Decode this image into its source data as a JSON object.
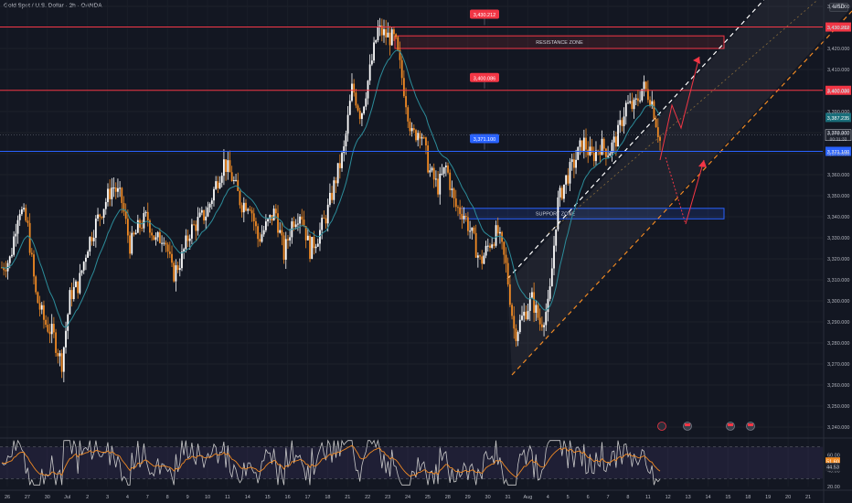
{
  "header": {
    "title": "Gold Spot / U.S. Dollar · 2h · OANDA",
    "currency": "USD"
  },
  "colors": {
    "background": "#131722",
    "bull": "#ffffff",
    "bear": "#f08a24",
    "ema": "#2c8c9a",
    "resistance": "#f23645",
    "support": "#2962ff",
    "channel_upper": "#ffffff",
    "channel_lower": "#f08a24",
    "rsi": "#c9c9c9",
    "rsi_ma": "#f08a24",
    "arrow": "#f23645"
  },
  "chart_data": {
    "type": "candlestick",
    "y_range": [
      3237,
      3449
    ],
    "y_ticks": [
      "3,440.000",
      "3,430.000",
      "3,420.000",
      "3,410.000",
      "3,400.000",
      "3,390.000",
      "3,380.000",
      "3,370.000",
      "3,360.000",
      "3,350.000",
      "3,340.000",
      "3,330.000",
      "3,320.000",
      "3,310.000",
      "3,300.000",
      "3,290.000",
      "3,280.000",
      "3,270.000",
      "3,260.000",
      "3,250.000",
      "3,240.000"
    ],
    "x_labels": [
      "26",
      "27",
      "30",
      "Jul",
      "2",
      "3",
      "4",
      "7",
      "8",
      "9",
      "10",
      "11",
      "14",
      "15",
      "16",
      "17",
      "18",
      "21",
      "22",
      "23",
      "24",
      "25",
      "28",
      "29",
      "30",
      "31",
      "Aug",
      "4",
      "5",
      "6",
      "7",
      "8",
      "11",
      "12",
      "13",
      "14",
      "15",
      "18",
      "19",
      "20",
      "21"
    ],
    "levels": [
      {
        "name": "resistance_top",
        "value": "3,430.212",
        "price": 3430.2
      },
      {
        "name": "resistance_mid",
        "value": "3,400.086",
        "price": 3400.1
      },
      {
        "name": "support_line",
        "value": "3,371.100",
        "price": 3371.1
      }
    ],
    "current_price": "3,378.800",
    "countdown": "00:31:33",
    "ema_label": "3,387.235",
    "zones": [
      {
        "label": "RESISTANCE ZONE",
        "top": 3426,
        "bottom": 3420
      },
      {
        "label": "SUPPORT ZONE",
        "top": 3344,
        "bottom": 3339
      }
    ],
    "trend": [
      [
        3316,
        3312
      ],
      [
        3320,
        3322
      ],
      [
        3345,
        3340
      ],
      [
        3336,
        3333
      ],
      [
        3302,
        3300
      ],
      [
        3290,
        3288
      ],
      [
        3284,
        3283
      ],
      [
        3270,
        3272
      ],
      [
        3303,
        3300
      ],
      [
        3308,
        3306
      ],
      [
        3326,
        3321
      ],
      [
        3337,
        3332
      ],
      [
        3346,
        3338
      ],
      [
        3355,
        3348
      ],
      [
        3348,
        3343
      ],
      [
        3326,
        3330
      ],
      [
        3335,
        3334
      ],
      [
        3340,
        3337
      ],
      [
        3328,
        3333
      ],
      [
        3332,
        3330
      ],
      [
        3312,
        3320
      ],
      [
        3320,
        3318
      ],
      [
        3333,
        3330
      ],
      [
        3338,
        3338
      ],
      [
        3342,
        3341
      ],
      [
        3355,
        3348
      ],
      [
        3366,
        3358
      ],
      [
        3358,
        3358
      ],
      [
        3346,
        3350
      ],
      [
        3347,
        3347
      ],
      [
        3329,
        3335
      ],
      [
        3336,
        3335
      ],
      [
        3343,
        3341
      ],
      [
        3322,
        3329
      ],
      [
        3338,
        3332
      ],
      [
        3343,
        3341
      ],
      [
        3324,
        3330
      ],
      [
        3331,
        3330
      ],
      [
        3341,
        3336
      ],
      [
        3357,
        3348
      ],
      [
        3371,
        3360
      ],
      [
        3402,
        3382
      ],
      [
        3388,
        3392
      ],
      [
        3408,
        3398
      ],
      [
        3429,
        3412
      ],
      [
        3426,
        3419
      ],
      [
        3424,
        3421
      ],
      [
        3402,
        3412
      ],
      [
        3378,
        3394
      ],
      [
        3382,
        3387
      ],
      [
        3362,
        3373
      ],
      [
        3354,
        3361
      ],
      [
        3364,
        3360
      ],
      [
        3345,
        3351
      ],
      [
        3342,
        3344
      ],
      [
        3331,
        3336
      ],
      [
        3318,
        3326
      ],
      [
        3327,
        3324
      ],
      [
        3333,
        3330
      ],
      [
        3316,
        3322
      ],
      [
        3284,
        3296
      ],
      [
        3293,
        3290
      ],
      [
        3301,
        3297
      ],
      [
        3289,
        3293
      ],
      [
        3298,
        3296
      ],
      [
        3346,
        3322
      ],
      [
        3358,
        3352
      ],
      [
        3366,
        3362
      ],
      [
        3376,
        3370
      ],
      [
        3368,
        3371
      ],
      [
        3374,
        3372
      ],
      [
        3371,
        3372
      ],
      [
        3378,
        3375
      ],
      [
        3393,
        3385
      ],
      [
        3392,
        3390
      ],
      [
        3402,
        3396
      ],
      [
        3396,
        3397
      ],
      [
        3376,
        3381
      ]
    ],
    "rsi": {
      "range": [
        20,
        80
      ],
      "levels": [
        70,
        30
      ],
      "ticks": [
        "60.00",
        "40.00",
        "20.00"
      ],
      "current": "44.53",
      "ma_label": "51.60"
    },
    "event_icons": 4
  }
}
